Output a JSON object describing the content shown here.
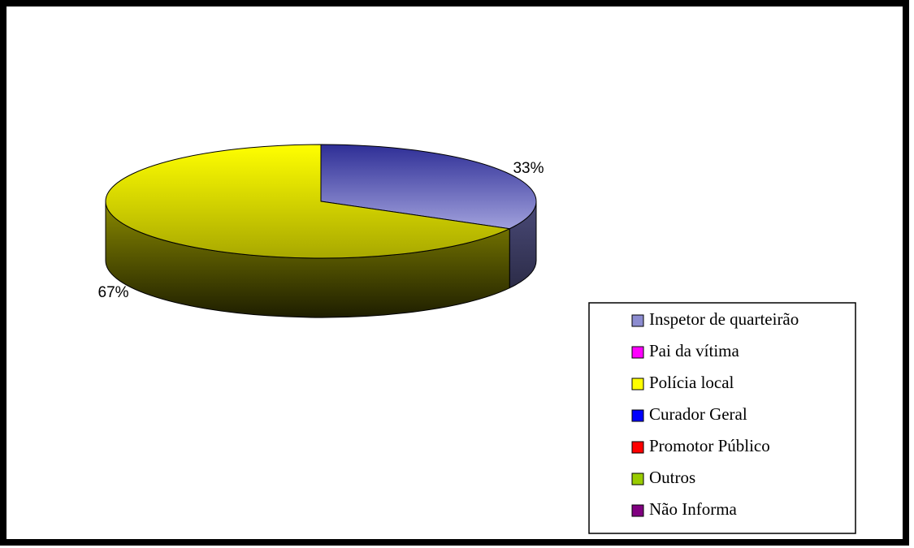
{
  "chart_data": {
    "type": "pie",
    "categories": [
      "Inspetor de quarteirão",
      "Pai da vítima",
      "Polícia local",
      "Curador Geral",
      "Promotor Público",
      "Outros",
      "Não Informa"
    ],
    "values": [
      33,
      0,
      67,
      0,
      0,
      0,
      0
    ],
    "value_labels": [
      "33%",
      null,
      "67%",
      null,
      null,
      null,
      null
    ],
    "colors": [
      "#8c8cd0",
      "#ff00ff",
      "#ffff00",
      "#0000ff",
      "#ff0000",
      "#99cc00",
      "#800080"
    ],
    "legend": "right"
  }
}
